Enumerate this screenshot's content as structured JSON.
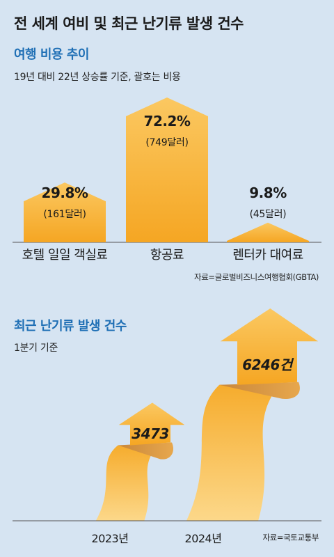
{
  "title": "전 세계 여비 및 최근 난기류 발생 건수",
  "colors": {
    "background": "#d6e4f2",
    "accent": "#1f6fb5",
    "bar": "#f8b43a",
    "bar_light": "#fcd27a"
  },
  "chart_data": [
    {
      "type": "bar",
      "title": "여행 비용 추이",
      "subtitle": "19년 대비 22년 상승률 기준, 괄호는 비용",
      "categories": [
        "호텔 일일 객실료",
        "항공료",
        "렌터카 대여료"
      ],
      "values": [
        29.8,
        72.2,
        9.8
      ],
      "value_labels": [
        "29.8%",
        "72.2%",
        "9.8%"
      ],
      "amount_labels": [
        "(161달러)",
        "(749달러)",
        "(45달러)"
      ],
      "unit": "%",
      "source": "자료=글로벌비즈니스여행협회(GBTA)"
    },
    {
      "type": "bar",
      "title": "최근 난기류 발생 건수",
      "subtitle": "1분기 기준",
      "categories": [
        "2023년",
        "2024년"
      ],
      "values": [
        3473,
        6246
      ],
      "value_labels": [
        "3473",
        "6246건"
      ],
      "source": "자료=국토교통부"
    }
  ]
}
